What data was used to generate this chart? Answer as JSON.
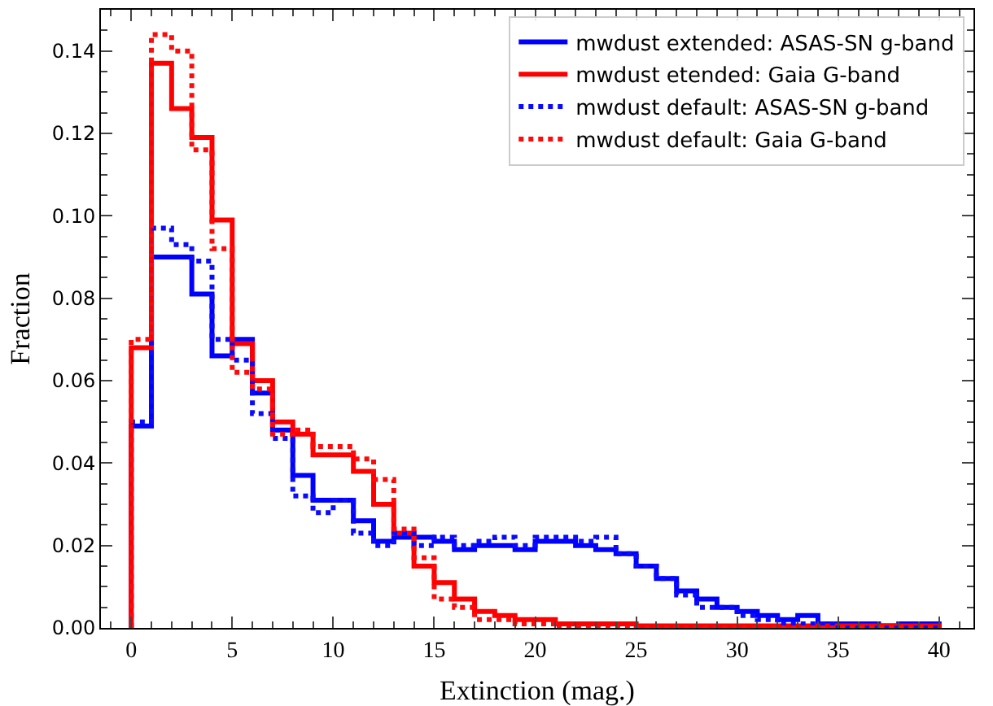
{
  "chart_data": {
    "type": "histogram",
    "xlabel": "Extinction (mag.)",
    "ylabel": "Fraction",
    "bins": [
      0,
      1,
      2,
      3,
      4,
      5,
      6,
      7,
      8,
      9,
      10,
      11,
      12,
      13,
      14,
      15,
      16,
      17,
      18,
      19,
      20,
      21,
      22,
      23,
      24,
      25,
      26,
      27,
      28,
      29,
      30,
      31,
      32,
      33,
      34,
      35,
      36,
      37,
      38,
      39,
      40
    ],
    "series": [
      {
        "name": "mwdust extended: ASAS-SN g-band",
        "color": "#0000ff",
        "line_style": "solid",
        "values": [
          0.049,
          0.09,
          0.09,
          0.081,
          0.066,
          0.07,
          0.057,
          0.048,
          0.037,
          0.031,
          0.031,
          0.026,
          0.021,
          0.022,
          0.022,
          0.021,
          0.019,
          0.02,
          0.02,
          0.019,
          0.021,
          0.021,
          0.02,
          0.019,
          0.018,
          0.015,
          0.012,
          0.009,
          0.007,
          0.005,
          0.004,
          0.003,
          0.002,
          0.003,
          0.001,
          0.001,
          0.001,
          0.0005,
          0.001,
          0.001
        ]
      },
      {
        "name": "mwdust etended: Gaia G-band",
        "color": "#ff0000",
        "line_style": "solid",
        "values": [
          0.068,
          0.137,
          0.126,
          0.119,
          0.099,
          0.069,
          0.06,
          0.05,
          0.047,
          0.042,
          0.042,
          0.038,
          0.03,
          0.023,
          0.015,
          0.011,
          0.007,
          0.004,
          0.003,
          0.002,
          0.002,
          0.001,
          0.001,
          0.001,
          0.001,
          0.0005,
          0.0005,
          0.0005,
          0.0005,
          0.0005,
          0.0005,
          0.0005,
          0.0005,
          0.0005,
          0.0005,
          0.0005,
          0.0005,
          0.0005,
          0.0005,
          0.0005
        ]
      },
      {
        "name": "mwdust default: ASAS-SN g-band",
        "color": "#0a0aff",
        "line_style": "dotted",
        "values": [
          0.05,
          0.097,
          0.093,
          0.089,
          0.07,
          0.065,
          0.052,
          0.046,
          0.032,
          0.028,
          0.031,
          0.023,
          0.02,
          0.023,
          0.02,
          0.022,
          0.02,
          0.021,
          0.022,
          0.02,
          0.022,
          0.022,
          0.021,
          0.022,
          0.018,
          0.015,
          0.012,
          0.008,
          0.005,
          0.005,
          0.003,
          0.002,
          0.001,
          0.001,
          0.001,
          0,
          0,
          0,
          0,
          0
        ]
      },
      {
        "name": "mwdust default: Gaia G-band",
        "color": "#ff0a0a",
        "line_style": "dotted",
        "values": [
          0.07,
          0.144,
          0.14,
          0.116,
          0.092,
          0.062,
          0.058,
          0.047,
          0.048,
          0.044,
          0.044,
          0.041,
          0.036,
          0.024,
          0.017,
          0.007,
          0.005,
          0.002,
          0.002,
          0.001,
          0.001,
          0,
          0,
          0,
          0,
          0,
          0,
          0,
          0,
          0,
          0,
          0,
          0,
          0,
          0,
          0,
          0,
          0,
          0,
          0
        ]
      }
    ],
    "xlim": [
      -1.5,
      41.7
    ],
    "xticks": [
      0,
      5,
      10,
      15,
      20,
      25,
      30,
      35,
      40
    ],
    "ylim": [
      0,
      0.15
    ],
    "yticks": [
      {
        "value": 0,
        "label": "0.00"
      },
      {
        "value": 0.02,
        "label": "0.02"
      },
      {
        "value": 0.04,
        "label": "0.04"
      },
      {
        "value": 0.06,
        "label": "0.06"
      },
      {
        "value": 0.08,
        "label": "0.08"
      },
      {
        "value": 0.1,
        "label": "0.10"
      },
      {
        "value": 0.12,
        "label": "0.12"
      },
      {
        "value": 0.14,
        "label": "0.14"
      }
    ],
    "grid": false,
    "legend": "top right"
  }
}
